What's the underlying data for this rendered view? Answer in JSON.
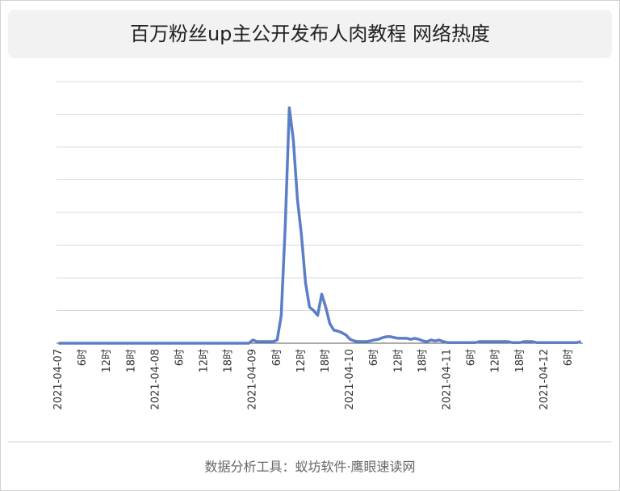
{
  "chart_data": {
    "type": "line",
    "title": "百万粉丝up主公开发布人肉教程 网络热度",
    "categories": [
      "2021-04-07",
      null,
      null,
      null,
      null,
      null,
      "6时",
      null,
      null,
      null,
      null,
      null,
      "12时",
      null,
      null,
      null,
      null,
      null,
      "18时",
      null,
      null,
      null,
      null,
      null,
      "2021-04-08",
      null,
      null,
      null,
      null,
      null,
      "6时",
      null,
      null,
      null,
      null,
      null,
      "12时",
      null,
      null,
      null,
      null,
      null,
      "18时",
      null,
      null,
      null,
      null,
      null,
      "2021-04-09",
      null,
      null,
      null,
      null,
      null,
      "6时",
      null,
      null,
      null,
      null,
      null,
      "12时",
      null,
      null,
      null,
      null,
      null,
      "18时",
      null,
      null,
      null,
      null,
      null,
      "2021-04-10",
      null,
      null,
      null,
      null,
      null,
      "6时",
      null,
      null,
      null,
      null,
      null,
      "12时",
      null,
      null,
      null,
      null,
      null,
      "18时",
      null,
      null,
      null,
      null,
      null,
      "2021-04-11",
      null,
      null,
      null,
      null,
      null,
      "6时",
      null,
      null,
      null,
      null,
      null,
      "12时",
      null,
      null,
      null,
      null,
      null,
      "18时",
      null,
      null,
      null,
      null,
      null,
      "2021-04-12",
      null,
      null,
      null,
      null,
      null,
      "6时",
      null,
      null,
      null
    ],
    "values": [
      0,
      0,
      0,
      0,
      0,
      0,
      0,
      0,
      0,
      0,
      0,
      0,
      0,
      0,
      0,
      0,
      0,
      0,
      0,
      0,
      0,
      0,
      0,
      0,
      0,
      0,
      0,
      0,
      0,
      0,
      0,
      0,
      0,
      0,
      0,
      0,
      0,
      0,
      0,
      0,
      0,
      0,
      0,
      0,
      0,
      0,
      0,
      0,
      0.1,
      0.05,
      0.05,
      0.05,
      0.05,
      0.05,
      0.1,
      0.85,
      3.6,
      7.2,
      6.2,
      4.4,
      3.3,
      1.85,
      1.1,
      1.0,
      0.85,
      1.5,
      1.1,
      0.6,
      0.4,
      0.37,
      0.32,
      0.25,
      0.12,
      0.07,
      0.05,
      0.05,
      0.05,
      0.07,
      0.1,
      0.12,
      0.17,
      0.2,
      0.2,
      0.17,
      0.15,
      0.15,
      0.15,
      0.12,
      0.15,
      0.12,
      0.07,
      0.05,
      0.1,
      0.07,
      0.1,
      0.05,
      0.02,
      0.02,
      0.02,
      0.02,
      0.02,
      0.02,
      0.02,
      0.02,
      0.05,
      0.05,
      0.05,
      0.05,
      0.05,
      0.05,
      0.05,
      0.05,
      0.02,
      0.02,
      0.02,
      0.05,
      0.05,
      0.05,
      0.02,
      0.02,
      0.02,
      0.02,
      0.02,
      0.02,
      0.02,
      0.02,
      0.02,
      0.02,
      0.02,
      0.05
    ],
    "color": "#5b7fc7",
    "ylim": [
      0,
      8
    ],
    "ygrid": [
      0,
      1,
      2,
      3,
      4,
      5,
      6,
      7,
      8
    ]
  },
  "footer": "数据分析工具：蚁坊软件·鹰眼速读网"
}
